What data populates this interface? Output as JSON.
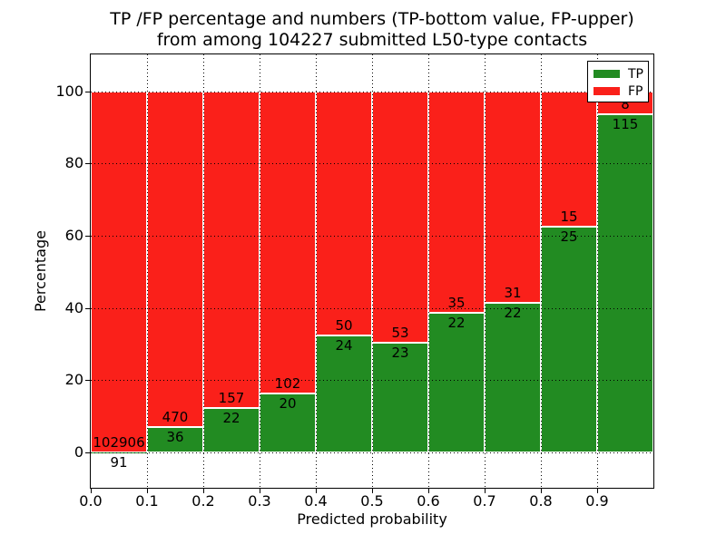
{
  "figure": {
    "title_line1": "TP /FP percentage and numbers (TP-bottom value, FP-upper)",
    "title_line2": "from among 104227 submitted L50-type contacts"
  },
  "axes": {
    "xlabel": "Predicted probability",
    "ylabel": "Percentage"
  },
  "legend": {
    "items": [
      {
        "label": "TP",
        "color": "#228b22"
      },
      {
        "label": "FP",
        "color": "#fa201a"
      }
    ]
  },
  "chart_data": {
    "type": "bar",
    "stacked": true,
    "normalized_to_percent": true,
    "title": "TP /FP percentage and numbers (TP-bottom value, FP-upper)\nfrom among 104227 submitted L50-type contacts",
    "xlabel": "Predicted probability",
    "ylabel": "Percentage",
    "grid": true,
    "legend_position": "upper right",
    "total_contacts": 104227,
    "bin_width": 0.1,
    "bins": [
      "0.0-0.1",
      "0.1-0.2",
      "0.2-0.3",
      "0.3-0.4",
      "0.4-0.5",
      "0.5-0.6",
      "0.6-0.7",
      "0.7-0.8",
      "0.8-0.9",
      "0.9-1.0"
    ],
    "series": [
      {
        "name": "TP",
        "color": "#228b22",
        "counts": [
          91,
          36,
          22,
          20,
          24,
          23,
          22,
          22,
          25,
          115
        ]
      },
      {
        "name": "FP",
        "color": "#fa201a",
        "counts": [
          102906,
          470,
          157,
          102,
          50,
          53,
          35,
          31,
          15,
          8
        ]
      }
    ],
    "tp_percent_by_bin": [
      0.09,
      7.11,
      12.29,
      16.39,
      32.43,
      30.26,
      38.6,
      41.51,
      62.5,
      93.5
    ],
    "xlim": [
      0.0,
      1.0
    ],
    "ylim": [
      -10.5,
      110
    ],
    "xtick_values": [
      0.0,
      0.1,
      0.2,
      0.3,
      0.4,
      0.5,
      0.6,
      0.7,
      0.8,
      0.9
    ],
    "xtick_labels": [
      "0.0",
      "0.1",
      "0.2",
      "0.3",
      "0.4",
      "0.5",
      "0.6",
      "0.7",
      "0.8",
      "0.9"
    ],
    "ytick_values": [
      0,
      20,
      40,
      60,
      80,
      100
    ],
    "ytick_labels": [
      "0",
      "20",
      "40",
      "60",
      "80",
      "100"
    ]
  }
}
